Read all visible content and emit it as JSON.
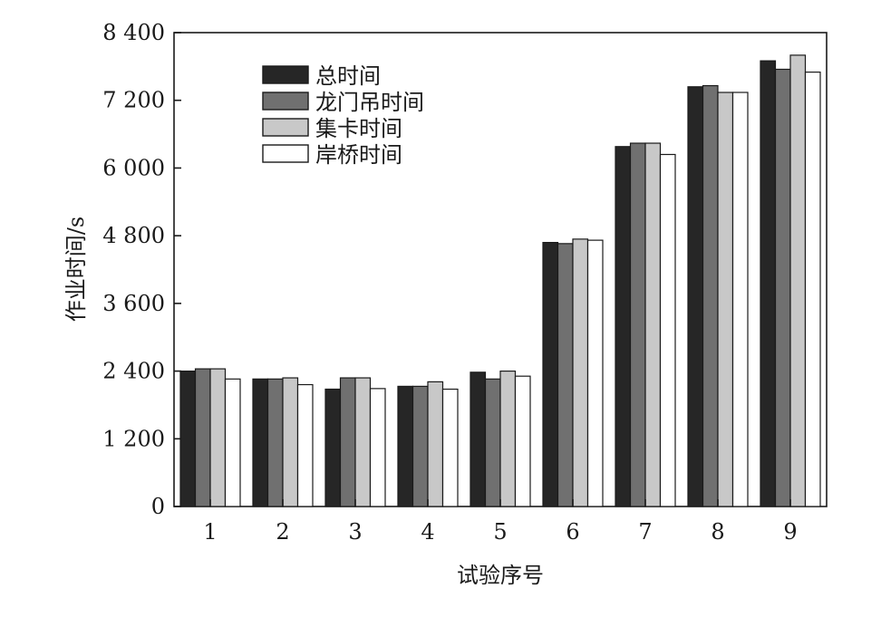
{
  "chart_data": {
    "type": "bar",
    "title": "",
    "xlabel": "试验序号",
    "ylabel": "作业时间/s",
    "categories": [
      "1",
      "2",
      "3",
      "4",
      "5",
      "6",
      "7",
      "8",
      "9"
    ],
    "ylim": [
      0,
      8400
    ],
    "yticks": [
      0,
      1200,
      2400,
      3600,
      4800,
      6000,
      7200,
      8400
    ],
    "ytick_labels": [
      "0",
      "1 200",
      "2 400",
      "3 600",
      "4 800",
      "6 000",
      "7 200",
      "8 400"
    ],
    "grid": false,
    "legend_position": "top-left",
    "series": [
      {
        "name": "总时间",
        "color": "#262626",
        "values": [
          2400,
          2260,
          2080,
          2130,
          2380,
          4680,
          6380,
          7440,
          7900
        ]
      },
      {
        "name": "龙门吊时间",
        "color": "#707070",
        "values": [
          2440,
          2260,
          2280,
          2130,
          2260,
          4660,
          6440,
          7460,
          7750
        ]
      },
      {
        "name": "集卡时间",
        "color": "#c8c8c8",
        "values": [
          2440,
          2280,
          2280,
          2210,
          2400,
          4740,
          6440,
          7340,
          8000
        ]
      },
      {
        "name": "岸桥时间",
        "color": "#ffffff",
        "values": [
          2260,
          2160,
          2090,
          2080,
          2310,
          4720,
          6240,
          7340,
          7700
        ]
      }
    ]
  }
}
